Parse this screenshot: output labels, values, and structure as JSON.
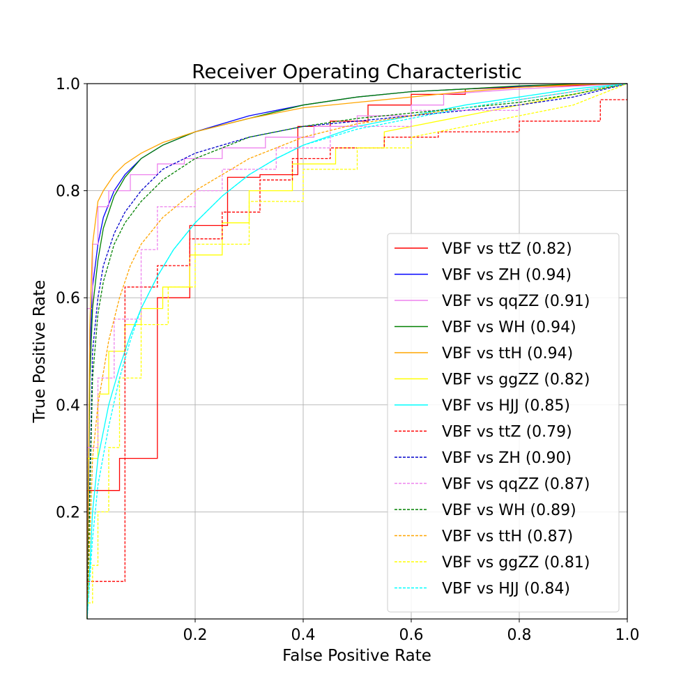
{
  "chart_data": {
    "type": "line",
    "title": "Receiver Operating Characteristic",
    "xlabel": "False Positive Rate",
    "ylabel": "True Positive Rate",
    "xlim": [
      0.0,
      1.0
    ],
    "ylim": [
      0.0,
      1.0
    ],
    "xticks": [
      {
        "v": 0.2,
        "label": "0.2"
      },
      {
        "v": 0.4,
        "label": "0.4"
      },
      {
        "v": 0.6,
        "label": "0.6"
      },
      {
        "v": 0.8,
        "label": "0.8"
      },
      {
        "v": 1.0,
        "label": "1.0"
      }
    ],
    "yticks": [
      {
        "v": 0.2,
        "label": "0.2"
      },
      {
        "v": 0.4,
        "label": "0.4"
      },
      {
        "v": 0.6,
        "label": "0.6"
      },
      {
        "v": 0.8,
        "label": "0.8"
      },
      {
        "v": 1.0,
        "label": "1.0"
      }
    ],
    "grid": true,
    "legend_position": "lower-right",
    "series": [
      {
        "name": "VBF vs ttZ (0.82)",
        "color": "#ff0000",
        "dash": "solid",
        "step": true,
        "x": [
          0.0,
          0.0,
          0.06,
          0.06,
          0.13,
          0.13,
          0.19,
          0.19,
          0.26,
          0.26,
          0.32,
          0.32,
          0.39,
          0.39,
          0.45,
          0.45,
          0.52,
          0.52,
          0.6,
          0.6,
          0.7,
          0.7,
          0.85,
          1.0
        ],
        "y": [
          0.0,
          0.24,
          0.24,
          0.3,
          0.3,
          0.6,
          0.6,
          0.735,
          0.735,
          0.825,
          0.825,
          0.83,
          0.83,
          0.92,
          0.92,
          0.93,
          0.93,
          0.96,
          0.96,
          0.98,
          0.98,
          0.99,
          0.995,
          1.0
        ]
      },
      {
        "name": "VBF vs ZH (0.94)",
        "color": "#0000ff",
        "dash": "solid",
        "step": false,
        "x": [
          0.0,
          0.005,
          0.01,
          0.02,
          0.03,
          0.05,
          0.07,
          0.1,
          0.14,
          0.2,
          0.3,
          0.4,
          0.5,
          0.6,
          0.7,
          0.8,
          0.9,
          1.0
        ],
        "y": [
          0.0,
          0.5,
          0.62,
          0.7,
          0.75,
          0.8,
          0.83,
          0.86,
          0.885,
          0.91,
          0.94,
          0.96,
          0.975,
          0.985,
          0.99,
          0.995,
          0.998,
          1.0
        ]
      },
      {
        "name": "VBF vs qqZZ (0.91)",
        "color": "#ee82ee",
        "dash": "solid",
        "step": true,
        "x": [
          0.0,
          0.0,
          0.01,
          0.01,
          0.02,
          0.02,
          0.04,
          0.04,
          0.08,
          0.08,
          0.13,
          0.13,
          0.18,
          0.18,
          0.25,
          0.25,
          0.33,
          0.33,
          0.42,
          0.42,
          0.5,
          0.5,
          0.6,
          0.6,
          0.66,
          0.66,
          0.8,
          1.0
        ],
        "y": [
          0.0,
          0.58,
          0.58,
          0.7,
          0.7,
          0.77,
          0.77,
          0.8,
          0.8,
          0.83,
          0.83,
          0.85,
          0.85,
          0.86,
          0.86,
          0.88,
          0.88,
          0.9,
          0.9,
          0.92,
          0.92,
          0.94,
          0.94,
          0.96,
          0.96,
          0.98,
          0.99,
          1.0
        ]
      },
      {
        "name": "VBF vs WH (0.94)",
        "color": "#008000",
        "dash": "solid",
        "step": false,
        "x": [
          0.0,
          0.005,
          0.01,
          0.02,
          0.03,
          0.05,
          0.07,
          0.1,
          0.14,
          0.2,
          0.3,
          0.4,
          0.5,
          0.6,
          0.7,
          0.8,
          0.9,
          1.0
        ],
        "y": [
          0.0,
          0.45,
          0.58,
          0.67,
          0.73,
          0.79,
          0.825,
          0.86,
          0.885,
          0.91,
          0.935,
          0.96,
          0.975,
          0.985,
          0.99,
          0.996,
          0.999,
          1.0
        ]
      },
      {
        "name": "VBF vs ttH (0.94)",
        "color": "#ffa500",
        "dash": "solid",
        "step": false,
        "x": [
          0.0,
          0.005,
          0.01,
          0.02,
          0.03,
          0.05,
          0.07,
          0.1,
          0.14,
          0.2,
          0.3,
          0.4,
          0.5,
          0.6,
          0.7,
          0.8,
          0.9,
          1.0
        ],
        "y": [
          0.0,
          0.55,
          0.7,
          0.78,
          0.8,
          0.83,
          0.85,
          0.87,
          0.89,
          0.91,
          0.935,
          0.955,
          0.965,
          0.975,
          0.985,
          0.993,
          0.998,
          1.0
        ]
      },
      {
        "name": "VBF vs ggZZ (0.82)",
        "color": "#ffff00",
        "dash": "solid",
        "step": true,
        "x": [
          0.0,
          0.0,
          0.02,
          0.02,
          0.04,
          0.04,
          0.07,
          0.07,
          0.1,
          0.1,
          0.14,
          0.14,
          0.19,
          0.19,
          0.25,
          0.25,
          0.3,
          0.3,
          0.38,
          0.38,
          0.46,
          0.46,
          0.55,
          0.55,
          0.7,
          0.85,
          1.0
        ],
        "y": [
          0.0,
          0.3,
          0.3,
          0.42,
          0.42,
          0.5,
          0.5,
          0.55,
          0.55,
          0.58,
          0.58,
          0.62,
          0.62,
          0.68,
          0.68,
          0.74,
          0.74,
          0.8,
          0.8,
          0.85,
          0.85,
          0.88,
          0.88,
          0.91,
          0.94,
          0.97,
          1.0
        ]
      },
      {
        "name": "VBF vs HJJ (0.85)",
        "color": "#00ffff",
        "dash": "solid",
        "step": false,
        "x": [
          0.0,
          0.01,
          0.02,
          0.04,
          0.06,
          0.08,
          0.1,
          0.13,
          0.16,
          0.2,
          0.25,
          0.3,
          0.35,
          0.4,
          0.5,
          0.6,
          0.7,
          0.8,
          0.9,
          1.0
        ],
        "y": [
          0.0,
          0.2,
          0.3,
          0.4,
          0.47,
          0.53,
          0.58,
          0.64,
          0.69,
          0.74,
          0.79,
          0.83,
          0.86,
          0.885,
          0.92,
          0.94,
          0.96,
          0.975,
          0.99,
          1.0
        ]
      },
      {
        "name": "VBF vs ttZ (0.79)",
        "color": "#ff0000",
        "dash": "dashed",
        "step": true,
        "x": [
          0.0,
          0.0,
          0.07,
          0.07,
          0.13,
          0.13,
          0.19,
          0.19,
          0.25,
          0.25,
          0.32,
          0.32,
          0.38,
          0.38,
          0.45,
          0.45,
          0.55,
          0.55,
          0.65,
          0.65,
          0.8,
          0.8,
          0.95,
          0.95,
          1.0
        ],
        "y": [
          0.07,
          0.07,
          0.07,
          0.62,
          0.62,
          0.66,
          0.66,
          0.71,
          0.71,
          0.76,
          0.76,
          0.82,
          0.82,
          0.86,
          0.86,
          0.88,
          0.88,
          0.9,
          0.9,
          0.91,
          0.91,
          0.93,
          0.93,
          0.97,
          0.97
        ]
      },
      {
        "name": "VBF vs ZH (0.90)",
        "color": "#0000cc",
        "dash": "dashed",
        "step": false,
        "x": [
          0.0,
          0.01,
          0.02,
          0.03,
          0.05,
          0.07,
          0.1,
          0.14,
          0.2,
          0.3,
          0.4,
          0.5,
          0.6,
          0.7,
          0.8,
          0.9,
          1.0
        ],
        "y": [
          0.0,
          0.5,
          0.6,
          0.66,
          0.72,
          0.76,
          0.8,
          0.84,
          0.87,
          0.9,
          0.92,
          0.93,
          0.94,
          0.95,
          0.96,
          0.975,
          1.0
        ]
      },
      {
        "name": "VBF vs qqZZ (0.87)",
        "color": "#ee82ee",
        "dash": "dashed",
        "step": true,
        "x": [
          0.0,
          0.0,
          0.02,
          0.02,
          0.05,
          0.05,
          0.1,
          0.1,
          0.13,
          0.13,
          0.2,
          0.2,
          0.25,
          0.25,
          0.35,
          0.35,
          0.45,
          0.45,
          0.6,
          0.6,
          0.8,
          0.8,
          1.0
        ],
        "y": [
          0.0,
          0.32,
          0.32,
          0.45,
          0.45,
          0.56,
          0.56,
          0.69,
          0.69,
          0.77,
          0.77,
          0.8,
          0.8,
          0.84,
          0.84,
          0.88,
          0.88,
          0.92,
          0.92,
          0.95,
          0.95,
          0.97,
          1.0
        ]
      },
      {
        "name": "VBF vs WH (0.89)",
        "color": "#008000",
        "dash": "dashed",
        "step": false,
        "x": [
          0.0,
          0.01,
          0.02,
          0.03,
          0.05,
          0.07,
          0.1,
          0.14,
          0.2,
          0.3,
          0.4,
          0.5,
          0.6,
          0.7,
          0.8,
          0.9,
          1.0
        ],
        "y": [
          0.0,
          0.45,
          0.57,
          0.63,
          0.7,
          0.74,
          0.78,
          0.82,
          0.86,
          0.9,
          0.92,
          0.935,
          0.945,
          0.955,
          0.965,
          0.98,
          1.0
        ]
      },
      {
        "name": "VBF vs ttH (0.87)",
        "color": "#ffa500",
        "dash": "dashed",
        "step": false,
        "x": [
          0.0,
          0.01,
          0.02,
          0.04,
          0.06,
          0.08,
          0.1,
          0.14,
          0.2,
          0.3,
          0.4,
          0.5,
          0.6,
          0.7,
          0.8,
          0.9,
          1.0
        ],
        "y": [
          0.0,
          0.3,
          0.4,
          0.52,
          0.6,
          0.66,
          0.7,
          0.75,
          0.8,
          0.86,
          0.9,
          0.925,
          0.94,
          0.955,
          0.97,
          0.985,
          1.0
        ]
      },
      {
        "name": "VBF vs ggZZ (0.81)",
        "color": "#ffff00",
        "dash": "dashed",
        "step": true,
        "x": [
          0.0,
          0.0,
          0.01,
          0.01,
          0.02,
          0.02,
          0.04,
          0.04,
          0.06,
          0.06,
          0.1,
          0.1,
          0.15,
          0.15,
          0.2,
          0.2,
          0.3,
          0.3,
          0.4,
          0.4,
          0.5,
          0.5,
          0.6,
          0.6,
          0.75,
          0.9,
          1.0
        ],
        "y": [
          0.0,
          0.03,
          0.03,
          0.1,
          0.1,
          0.2,
          0.2,
          0.32,
          0.32,
          0.45,
          0.45,
          0.55,
          0.55,
          0.62,
          0.62,
          0.7,
          0.7,
          0.78,
          0.78,
          0.84,
          0.84,
          0.88,
          0.88,
          0.9,
          0.93,
          0.96,
          1.0
        ]
      },
      {
        "name": "VBF vs HJJ (0.84)",
        "color": "#00ffff",
        "dash": "dashed",
        "step": false,
        "x": [
          0.0,
          0.01,
          0.02,
          0.04,
          0.06,
          0.08,
          0.1,
          0.13,
          0.16,
          0.2,
          0.25,
          0.3,
          0.35,
          0.4,
          0.5,
          0.6,
          0.7,
          0.8,
          0.9,
          1.0
        ],
        "y": [
          0.0,
          0.15,
          0.25,
          0.36,
          0.45,
          0.52,
          0.58,
          0.64,
          0.69,
          0.74,
          0.79,
          0.83,
          0.86,
          0.885,
          0.915,
          0.935,
          0.955,
          0.97,
          0.985,
          1.0
        ]
      }
    ]
  }
}
